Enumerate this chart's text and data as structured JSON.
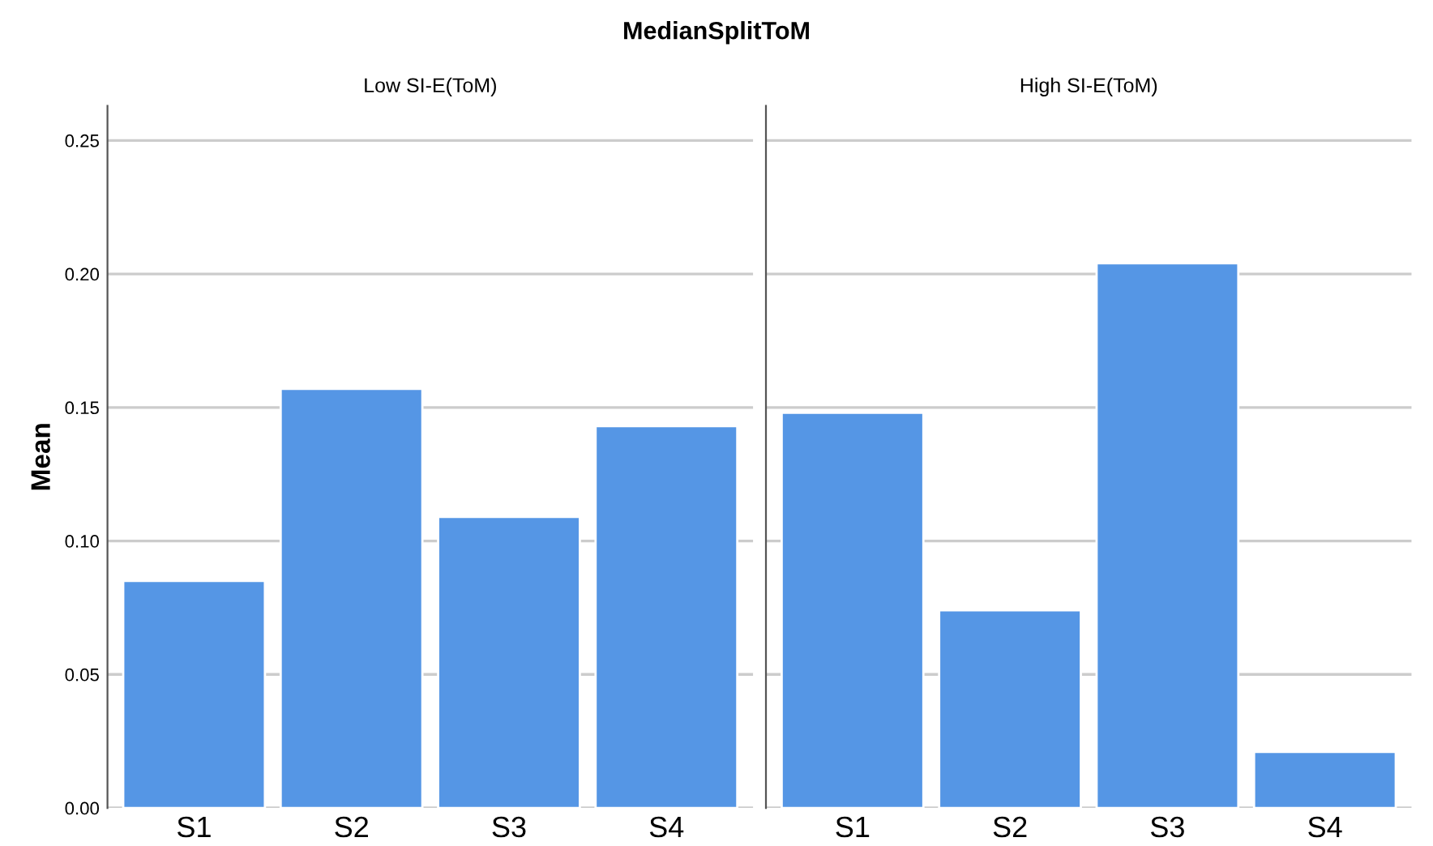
{
  "chart_data": [
    {
      "type": "bar",
      "title": "MedianSplitToM",
      "subtitle": "Low SI-E(ToM)",
      "ylabel": "Mean",
      "categories": [
        "S1",
        "S2",
        "S3",
        "S4"
      ],
      "values": [
        0.085,
        0.157,
        0.109,
        0.143
      ],
      "color": "#5596e5",
      "ylim": [
        0,
        0.263
      ],
      "yticks": [
        {
          "value": 0,
          "label": "0.00"
        },
        {
          "value": 0.05,
          "label": "0.05"
        },
        {
          "value": 0.1,
          "label": "0.10"
        },
        {
          "value": 0.15,
          "label": "0.15"
        },
        {
          "value": 0.2,
          "label": "0.20"
        },
        {
          "value": 0.25,
          "label": "0.25"
        }
      ],
      "grid": "y"
    },
    {
      "type": "bar",
      "subtitle": "High SI-E(ToM)",
      "categories": [
        "S1",
        "S2",
        "S3",
        "S4"
      ],
      "values": [
        0.148,
        0.074,
        0.204,
        0.021
      ],
      "color": "#5596e5",
      "ylim": [
        0,
        0.263
      ],
      "yticks": [
        0,
        0.05,
        0.1,
        0.15,
        0.2,
        0.25
      ],
      "grid": "y",
      "tick_labels": "x"
    }
  ]
}
